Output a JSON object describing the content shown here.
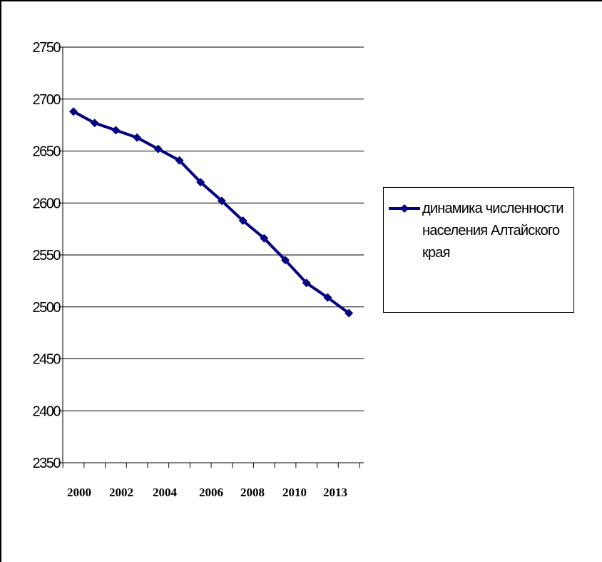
{
  "chart_data": {
    "type": "line",
    "title": "",
    "xlabel": "",
    "ylabel": "",
    "ylim": [
      2350,
      2750
    ],
    "yticks": [
      2350,
      2400,
      2450,
      2500,
      2550,
      2600,
      2650,
      2700,
      2750
    ],
    "grid": "horizontal",
    "legend_position": "right",
    "xtick_labels": [
      "2000",
      "2002",
      "2004",
      "2006",
      "2008",
      "2010",
      "2013"
    ],
    "series": [
      {
        "name": "динамика численности населения Алтайского края",
        "color": "#000080",
        "marker": "diamond",
        "values": [
          2688,
          2677,
          2670,
          2663,
          2652,
          2641,
          2620,
          2602,
          2583,
          2566,
          2545,
          2523,
          2509,
          2494
        ]
      }
    ]
  }
}
